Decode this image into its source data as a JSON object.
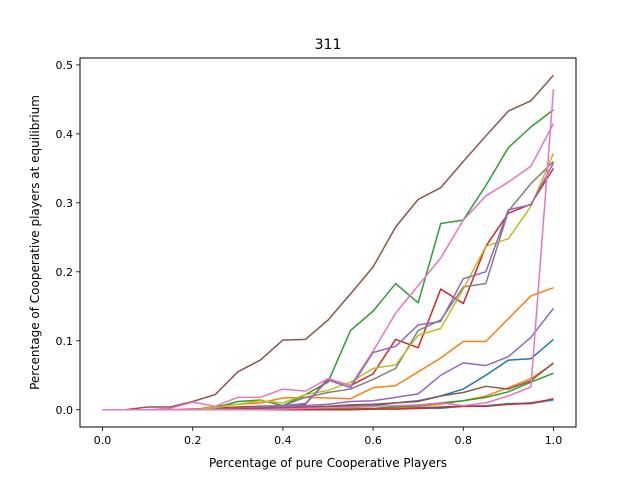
{
  "chart_data": {
    "type": "line",
    "title": "311",
    "xlabel": "Percentage of pure Cooperative Players",
    "ylabel": "Percentage of Cooperative players at equilibrium",
    "xlim": [
      -0.05,
      1.05
    ],
    "ylim": [
      -0.025,
      0.51
    ],
    "xticks": [
      0.0,
      0.2,
      0.4,
      0.6,
      0.8,
      1.0
    ],
    "xtick_labels": [
      "0.0",
      "0.2",
      "0.4",
      "0.6",
      "0.8",
      "1.0"
    ],
    "yticks": [
      0.0,
      0.1,
      0.2,
      0.3,
      0.4,
      0.5
    ],
    "ytick_labels": [
      "0.0",
      "0.1",
      "0.2",
      "0.3",
      "0.4",
      "0.5"
    ],
    "grid": false,
    "legend": "none",
    "x": [
      0.0,
      0.05,
      0.1,
      0.15,
      0.2,
      0.25,
      0.3,
      0.35,
      0.4,
      0.45,
      0.5,
      0.55,
      0.6,
      0.65,
      0.7,
      0.75,
      0.8,
      0.85,
      0.9,
      0.95,
      1.0
    ],
    "series": [
      {
        "color": "#1f77b4",
        "values": [
          0,
          0,
          0,
          0,
          0,
          0.001,
          0.001,
          0.002,
          0.002,
          0.003,
          0.004,
          0.005,
          0.006,
          0.01,
          0.013,
          0.02,
          0.03,
          0.05,
          0.072,
          0.074,
          0.102
        ]
      },
      {
        "color": "#ff7f0e",
        "values": [
          0,
          0,
          0,
          0,
          0,
          0.005,
          0.008,
          0.01,
          0.017,
          0.018,
          0.017,
          0.016,
          0.032,
          0.035,
          0.055,
          0.075,
          0.099,
          0.099,
          0.132,
          0.165,
          0.177
        ]
      },
      {
        "color": "#2ca02c",
        "values": [
          0,
          0,
          0,
          0,
          0,
          0.003,
          0.012,
          0.014,
          0.006,
          0.022,
          0.04,
          0.115,
          0.143,
          0.183,
          0.155,
          0.27,
          0.275,
          0.325,
          0.38,
          0.41,
          0.435
        ]
      },
      {
        "color": "#d62728",
        "values": [
          0,
          0,
          0,
          0,
          0.001,
          0.002,
          0.004,
          0.005,
          0.006,
          0.008,
          0.045,
          0.035,
          0.052,
          0.102,
          0.09,
          0.175,
          0.154,
          0.237,
          0.285,
          0.298,
          0.35
        ]
      },
      {
        "color": "#9467bd",
        "values": [
          0,
          0,
          0,
          0,
          0,
          0.001,
          0.002,
          0.003,
          0.005,
          0.006,
          0.008,
          0.012,
          0.013,
          0.018,
          0.023,
          0.05,
          0.068,
          0.064,
          0.077,
          0.105,
          0.147
        ]
      },
      {
        "color": "#8c564b",
        "values": [
          0,
          0,
          0.004,
          0.004,
          0.012,
          0.022,
          0.055,
          0.072,
          0.101,
          0.102,
          0.13,
          0.168,
          0.207,
          0.265,
          0.305,
          0.322,
          0.36,
          0.397,
          0.433,
          0.448,
          0.485
        ]
      },
      {
        "color": "#e377c2",
        "values": [
          0,
          0,
          0,
          0.002,
          0.011,
          0.005,
          0.018,
          0.018,
          0.03,
          0.027,
          0.045,
          0.035,
          0.085,
          0.14,
          0.18,
          0.22,
          0.275,
          0.31,
          0.33,
          0.353,
          0.415
        ]
      },
      {
        "color": "#7f7f7f",
        "values": [
          0,
          0,
          0,
          0,
          0,
          0.001,
          0.002,
          0.004,
          0.006,
          0.018,
          0.025,
          0.03,
          0.044,
          0.06,
          0.115,
          0.13,
          0.178,
          0.183,
          0.288,
          0.328,
          0.36
        ]
      },
      {
        "color": "#bcbd22",
        "values": [
          0,
          0,
          0,
          0,
          0,
          0.003,
          0.008,
          0.013,
          0.01,
          0.022,
          0.028,
          0.04,
          0.06,
          0.065,
          0.108,
          0.118,
          0.175,
          0.237,
          0.248,
          0.295,
          0.372
        ]
      },
      {
        "color": "#17becf",
        "values": [
          0,
          0,
          0,
          0,
          0,
          0,
          0,
          0,
          0,
          0,
          0.001,
          0.001,
          0.001,
          0.002,
          0.002,
          0.002,
          0.005,
          0.006,
          0.009,
          0.009,
          0.014
        ]
      },
      {
        "color": "#1f77b4",
        "values": [
          0,
          0,
          0,
          0,
          0,
          0,
          0,
          0,
          0.001,
          0.001,
          0.001,
          0.002,
          0.002,
          0.002,
          0.003,
          0.004,
          0.005,
          0.005,
          0.008,
          0.01,
          0.015
        ]
      },
      {
        "color": "#ff7f0e",
        "values": [
          0,
          0,
          0,
          0,
          0,
          0,
          0,
          0,
          0.001,
          0.001,
          0.001,
          0.002,
          0.002,
          0.003,
          0.005,
          0.008,
          0.013,
          0.02,
          0.032,
          0.045,
          0.067
        ]
      },
      {
        "color": "#2ca02c",
        "values": [
          0,
          0,
          0,
          0,
          0,
          0,
          0,
          0,
          0,
          0.001,
          0.001,
          0.001,
          0.002,
          0.004,
          0.006,
          0.01,
          0.013,
          0.018,
          0.026,
          0.04,
          0.053
        ]
      },
      {
        "color": "#d62728",
        "values": [
          0,
          0,
          0,
          0,
          0,
          0,
          0,
          0,
          0,
          0,
          0,
          0,
          0.001,
          0.001,
          0.002,
          0.003,
          0.005,
          0.005,
          0.008,
          0.009,
          0.016
        ]
      },
      {
        "color": "#9467bd",
        "values": [
          0,
          0,
          0,
          0,
          0,
          0,
          0,
          0.004,
          0.006,
          0.009,
          0.043,
          0.032,
          0.083,
          0.092,
          0.123,
          0.128,
          0.19,
          0.2,
          0.29,
          0.297,
          0.358
        ]
      },
      {
        "color": "#8c564b",
        "values": [
          0,
          0,
          0,
          0,
          0,
          0,
          0.001,
          0.002,
          0.003,
          0.004,
          0.005,
          0.007,
          0.008,
          0.01,
          0.012,
          0.02,
          0.025,
          0.034,
          0.03,
          0.042,
          0.068
        ]
      },
      {
        "color": "#e377c2",
        "values": [
          0,
          0,
          0,
          0,
          0,
          0,
          0,
          0,
          0.001,
          0.002,
          0.003,
          0.004,
          0.005,
          0.006,
          0.007,
          0.01,
          0.006,
          0.01,
          0.02,
          0.033,
          0.465
        ]
      }
    ]
  }
}
